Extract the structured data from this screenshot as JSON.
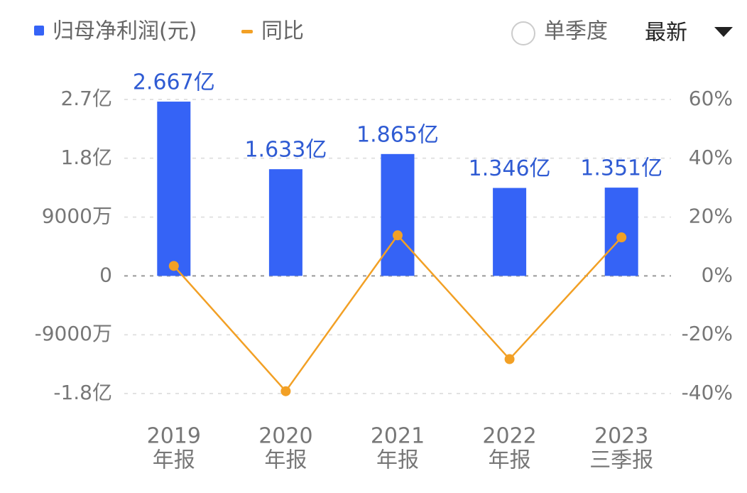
{
  "chart_data": {
    "type": "bar_line",
    "legend": [
      "归母净利润(元)",
      "同比"
    ],
    "categories": [
      [
        "2019",
        "年报"
      ],
      [
        "2020",
        "年报"
      ],
      [
        "2021",
        "年报"
      ],
      [
        "2022",
        "年报"
      ],
      [
        "2023",
        "三季报"
      ]
    ],
    "series": [
      {
        "name": "归母净利润(元)",
        "color": "#3563f6",
        "type": "bar",
        "values": [
          2.667,
          1.633,
          1.865,
          1.346,
          1.351
        ],
        "value_labels": [
          "2.667亿",
          "1.633亿",
          "1.865亿",
          "1.346亿",
          "1.351亿"
        ]
      },
      {
        "name": "同比",
        "color": "#f2a025",
        "type": "line",
        "axis": "y2",
        "values": [
          3.4,
          -39.2,
          13.8,
          -28.3,
          13.1
        ]
      }
    ],
    "ylim": [
      -1.8,
      2.7
    ],
    "yticks": [
      {
        "value": 2.7,
        "label": "2.7亿"
      },
      {
        "value": 1.8,
        "label": "1.8亿"
      },
      {
        "value": 0.9,
        "label": "9000万"
      },
      0,
      {
        "value": -0.9,
        "label": "-9000万"
      },
      {
        "value": -1.8,
        "label": "-1.8亿"
      }
    ],
    "y2lim": [
      -40,
      60
    ],
    "y2ticks": [
      {
        "value": 60,
        "label": "60%"
      },
      {
        "value": 40,
        "label": "40%"
      },
      {
        "value": 20,
        "label": "20%"
      },
      {
        "value": 0,
        "label": "0%"
      },
      {
        "value": -20,
        "label": "-20%"
      },
      {
        "value": -40,
        "label": "-40%"
      }
    ],
    "grid": true
  },
  "controls": {
    "single_quarter": "单季度",
    "period": "最新"
  }
}
